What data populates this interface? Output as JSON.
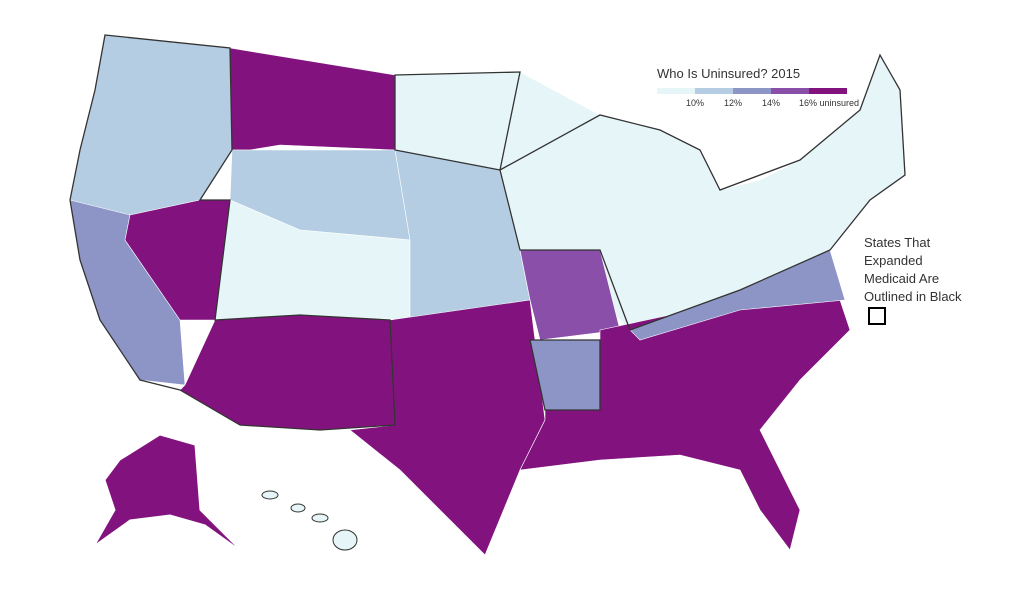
{
  "legend": {
    "title": "Who Is Uninsured? 2015",
    "colors": [
      "#e6f6f8",
      "#b4cde2",
      "#8d95c7",
      "#8a4fa8",
      "#82137e"
    ],
    "labels": [
      "10%",
      "12%",
      "14%",
      "16% uninsured"
    ]
  },
  "annotation": "States That Expanded Medicaid Are Outlined in Black"
}
